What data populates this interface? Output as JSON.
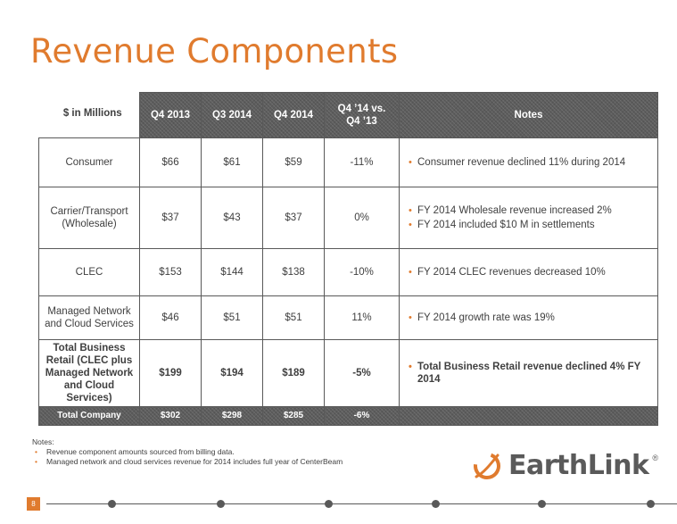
{
  "title": "Revenue Components",
  "table": {
    "units_label": "$ in Millions",
    "headers": [
      "Q4 2013",
      "Q3 2014",
      "Q4 2014",
      "Q4 ’14 vs.\nQ4 ’13",
      "Notes"
    ],
    "rows": [
      {
        "category": "Consumer",
        "q4_2013": "$66",
        "q3_2014": "$61",
        "q4_2014": "$59",
        "change": "-11%",
        "notes": [
          "Consumer revenue declined 11% during 2014"
        ]
      },
      {
        "category": "Carrier/Transport (Wholesale)",
        "q4_2013": "$37",
        "q3_2014": "$43",
        "q4_2014": "$37",
        "change": "0%",
        "notes": [
          "FY 2014 Wholesale revenue increased 2%",
          "FY 2014 included $10 M in settlements"
        ]
      },
      {
        "category": "CLEC",
        "q4_2013": "$153",
        "q3_2014": "$144",
        "q4_2014": "$138",
        "change": "-10%",
        "notes": [
          "FY 2014 CLEC revenues decreased 10%"
        ]
      },
      {
        "category": "Managed Network and Cloud Services",
        "q4_2013": "$46",
        "q3_2014": "$51",
        "q4_2014": "$51",
        "change": "11%",
        "notes": [
          "FY 2014 growth rate was 19%"
        ]
      },
      {
        "category": "Total Business Retail (CLEC plus Managed Network and Cloud Services)",
        "q4_2013": "$199",
        "q3_2014": "$194",
        "q4_2014": "$189",
        "change": "-5%",
        "notes": [
          "Total Business Retail revenue declined 4% FY 2014"
        ]
      }
    ],
    "total": {
      "category": "Total Company",
      "q4_2013": "$302",
      "q3_2014": "$298",
      "q4_2014": "$285",
      "change": "-6%"
    }
  },
  "footnotes": {
    "label": "Notes:",
    "items": [
      "Revenue component amounts sourced from billing data.",
      "Managed network and cloud services revenue for 2014 includes full year of CenterBeam"
    ]
  },
  "logo": {
    "text": "EarthLink",
    "mark": "®",
    "accent_color": "#e07b2e"
  },
  "page_number": "8",
  "colors": {
    "accent": "#e07b2e",
    "header_bg": "#5d5d5d",
    "text": "#404040"
  }
}
